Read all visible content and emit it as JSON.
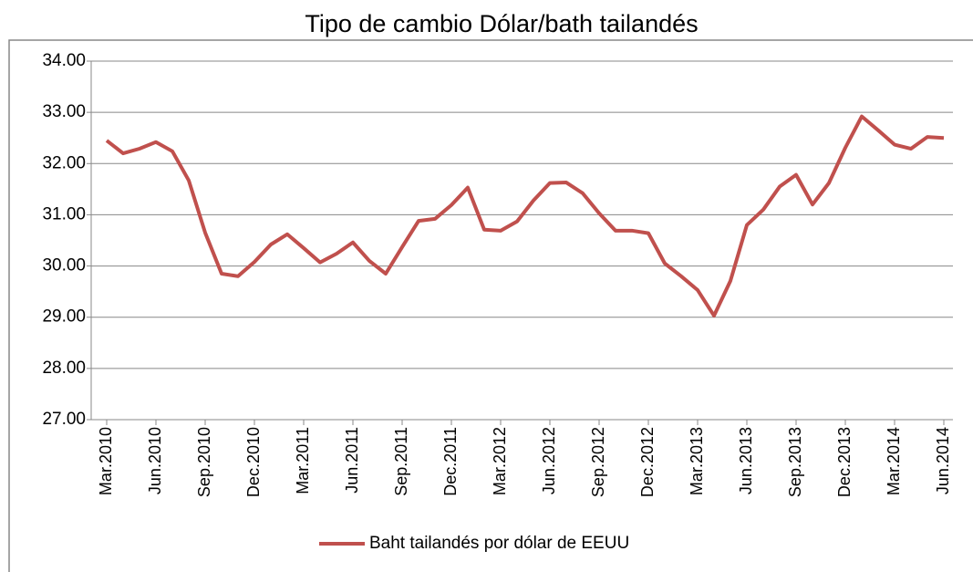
{
  "chart_data": {
    "type": "line",
    "title": "Tipo de cambio Dólar/bath tailandés",
    "categories": [
      "Mar.2010",
      null,
      null,
      "Jun.2010",
      null,
      null,
      "Sep.2010",
      null,
      null,
      "Dec.2010",
      null,
      null,
      "Mar.2011",
      null,
      null,
      "Jun.2011",
      null,
      null,
      "Sep.2011",
      null,
      null,
      "Dec.2011",
      null,
      null,
      "Mar.2012",
      null,
      null,
      "Jun.2012",
      null,
      null,
      "Sep.2012",
      null,
      null,
      "Dec.2012",
      null,
      null,
      "Mar.2013",
      null,
      null,
      "Jun.2013",
      null,
      null,
      "Sep.2013",
      null,
      null,
      "Dec.2013",
      null,
      null,
      "Mar.2014",
      null,
      null,
      "Jun.2014"
    ],
    "series": [
      {
        "name": "Baht tailandés por dólar de EEUU",
        "color": "#c0504d",
        "values": [
          32.45,
          32.2,
          32.29,
          32.42,
          32.24,
          31.67,
          30.65,
          29.85,
          29.8,
          30.08,
          30.42,
          30.62,
          30.35,
          30.07,
          30.24,
          30.46,
          30.1,
          29.85,
          30.37,
          30.88,
          30.92,
          31.19,
          31.53,
          30.71,
          30.69,
          30.87,
          31.28,
          31.62,
          31.63,
          31.42,
          31.03,
          30.69,
          30.69,
          30.64,
          30.05,
          29.8,
          29.53,
          29.03,
          29.71,
          30.8,
          31.1,
          31.55,
          31.78,
          31.2,
          31.62,
          32.31,
          32.92,
          32.65,
          32.37,
          32.29,
          32.52,
          32.5
        ]
      }
    ],
    "ylim": [
      27,
      34
    ],
    "yticks": [
      {
        "value": 27,
        "label": "27.00"
      },
      {
        "value": 28,
        "label": "28.00"
      },
      {
        "value": 29,
        "label": "29.00"
      },
      {
        "value": 30,
        "label": "30.00"
      },
      {
        "value": 31,
        "label": "31.00"
      },
      {
        "value": 32,
        "label": "32.00"
      },
      {
        "value": 33,
        "label": "33.00"
      },
      {
        "value": 34,
        "label": "34.00"
      }
    ],
    "grid": true,
    "legend": "bottom"
  }
}
